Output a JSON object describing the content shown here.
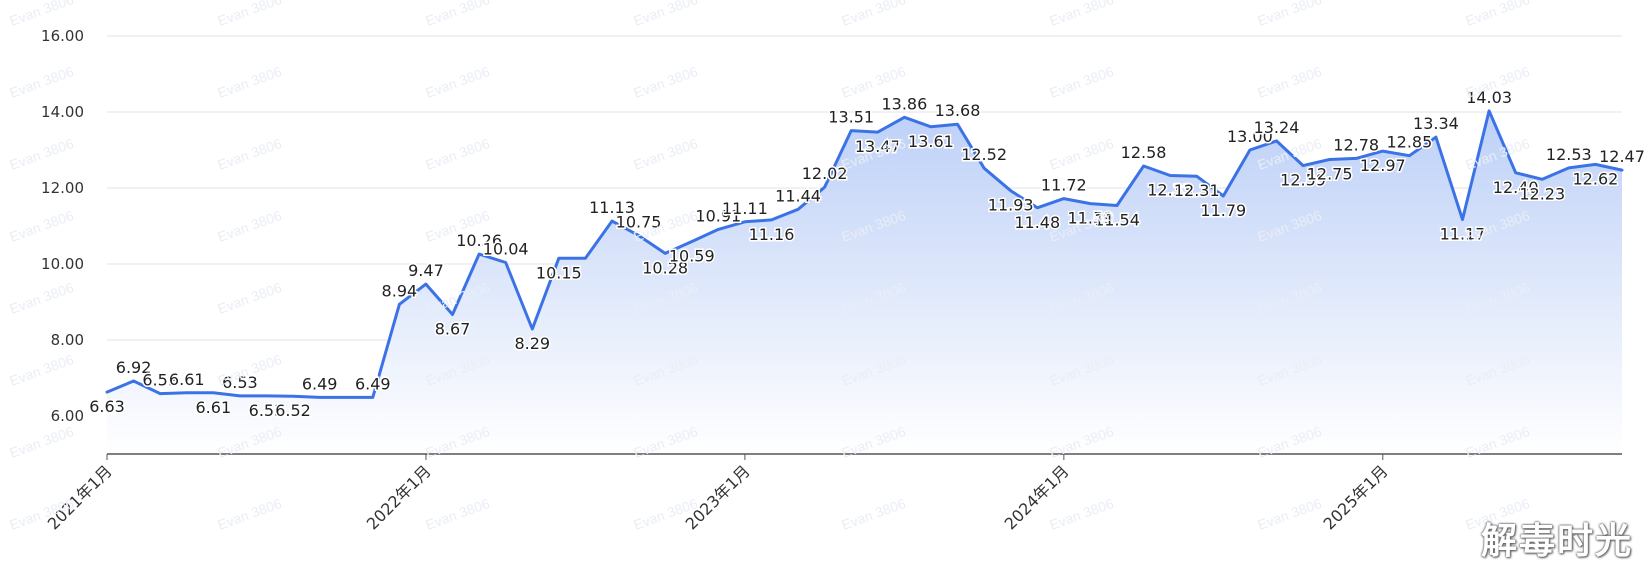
{
  "chart_data": {
    "type": "area",
    "title": "",
    "xlabel": "",
    "ylabel": "",
    "ylim": [
      5.0,
      16.3
    ],
    "yticks": [
      "6.00",
      "8.00",
      "10.00",
      "12.00",
      "14.00",
      "16.00"
    ],
    "x_tick_labels": [
      "2021年1月",
      "2022年1月",
      "2023年1月",
      "2024年1月",
      "2025年1月"
    ],
    "grid": true,
    "series_color": "#3b73e6",
    "fill_top_color": "#bdd0f7",
    "fill_bottom_color": "#ffffff",
    "values": [
      6.63,
      6.92,
      6.59,
      6.61,
      6.61,
      6.53,
      6.53,
      6.52,
      6.49,
      6.49,
      6.49,
      8.94,
      9.47,
      8.67,
      10.26,
      10.04,
      8.29,
      10.15,
      10.15,
      11.13,
      10.75,
      10.28,
      10.59,
      10.91,
      11.11,
      11.16,
      11.44,
      12.02,
      13.51,
      13.47,
      13.86,
      13.61,
      13.68,
      12.52,
      11.93,
      11.48,
      11.72,
      11.59,
      11.54,
      12.58,
      12.33,
      12.31,
      11.79,
      13.0,
      13.24,
      12.59,
      12.75,
      12.78,
      12.97,
      12.85,
      13.34,
      11.17,
      14.03,
      12.4,
      12.23,
      12.53,
      12.62,
      12.47
    ],
    "labels": [
      "6.63",
      "6.92",
      "6.59",
      "6.61",
      "6.61",
      "6.53",
      "6.53",
      "6.52",
      "6.49",
      "",
      "6.49",
      "8.94",
      "9.47",
      "8.67",
      "10.26",
      "10.04",
      "8.29",
      "10.15",
      "",
      "11.13",
      "10.75",
      "10.28",
      "10.59",
      "10.91",
      "11.11",
      "11.16",
      "11.44",
      "12.02",
      "13.51",
      "13.47",
      "13.86",
      "13.61",
      "13.68",
      "12.52",
      "11.93",
      "11.48",
      "11.72",
      "11.59",
      "11.54",
      "12.58",
      "12.33",
      "12.31",
      "11.79",
      "13.00",
      "13.24",
      "12.59",
      "12.75",
      "12.78",
      "12.97",
      "12.85",
      "13.34",
      "11.17",
      "14.03",
      "12.40",
      "12.23",
      "12.53",
      "12.62",
      "12.47"
    ],
    "label_position": [
      "below",
      "above",
      "above",
      "above",
      "below",
      "above",
      "below",
      "below",
      "above",
      "",
      "above",
      "above",
      "above",
      "below",
      "above",
      "above",
      "below",
      "below",
      "",
      "above",
      "above",
      "below",
      "below",
      "above",
      "above",
      "below",
      "above",
      "above",
      "above",
      "below",
      "above",
      "below",
      "above",
      "above",
      "below",
      "below",
      "above",
      "below",
      "below",
      "above",
      "below",
      "below",
      "below",
      "above",
      "above",
      "below",
      "below",
      "above",
      "below",
      "above",
      "above",
      "below",
      "above",
      "below",
      "below",
      "above",
      "below",
      "above"
    ]
  },
  "watermark": {
    "repeat_text": "Evan 3806",
    "corner_text": "解毒时光"
  }
}
